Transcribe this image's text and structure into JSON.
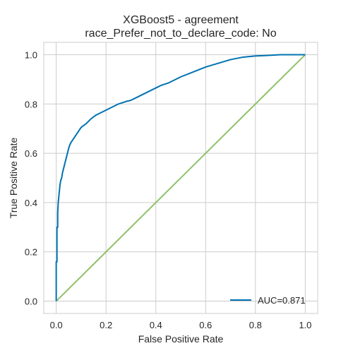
{
  "chart_data": {
    "type": "line",
    "title": "XGBoost5 - agreement",
    "subtitle": "race_Prefer_not_to_declare_code: No",
    "xlabel": "False Positive Rate",
    "ylabel": "True Positive Rate",
    "xlim": [
      -0.05,
      1.05
    ],
    "ylim": [
      -0.05,
      1.05
    ],
    "xticks": [
      "0.0",
      "0.2",
      "0.4",
      "0.6",
      "0.8",
      "1.0"
    ],
    "yticks": [
      "0.0",
      "0.2",
      "0.4",
      "0.6",
      "0.8",
      "1.0"
    ],
    "grid": true,
    "legend_position": "lower-right",
    "series": [
      {
        "name": "AUC=0.871",
        "color": "#0072b2",
        "x": [
          0,
          0,
          0.003,
          0.003,
          0.006,
          0.006,
          0.008,
          0.01,
          0.012,
          0.015,
          0.018,
          0.022,
          0.025,
          0.03,
          0.035,
          0.04,
          0.045,
          0.05,
          0.055,
          0.06,
          0.07,
          0.08,
          0.09,
          0.1,
          0.12,
          0.14,
          0.16,
          0.18,
          0.2,
          0.22,
          0.25,
          0.28,
          0.3,
          0.32,
          0.35,
          0.38,
          0.4,
          0.42,
          0.45,
          0.48,
          0.5,
          0.55,
          0.6,
          0.65,
          0.7,
          0.75,
          0.8,
          0.85,
          0.9,
          0.95,
          1.0
        ],
        "y": [
          0,
          0.16,
          0.16,
          0.3,
          0.3,
          0.36,
          0.4,
          0.42,
          0.44,
          0.47,
          0.49,
          0.5,
          0.52,
          0.54,
          0.56,
          0.58,
          0.6,
          0.62,
          0.635,
          0.645,
          0.66,
          0.675,
          0.69,
          0.705,
          0.72,
          0.74,
          0.755,
          0.765,
          0.775,
          0.785,
          0.8,
          0.81,
          0.815,
          0.825,
          0.84,
          0.855,
          0.865,
          0.875,
          0.885,
          0.9,
          0.91,
          0.93,
          0.95,
          0.965,
          0.98,
          0.99,
          0.995,
          0.997,
          1.0,
          1.0,
          1.0
        ]
      },
      {
        "name": "",
        "color": "#8fc16a",
        "x": [
          0,
          1
        ],
        "y": [
          0,
          1
        ]
      }
    ]
  }
}
